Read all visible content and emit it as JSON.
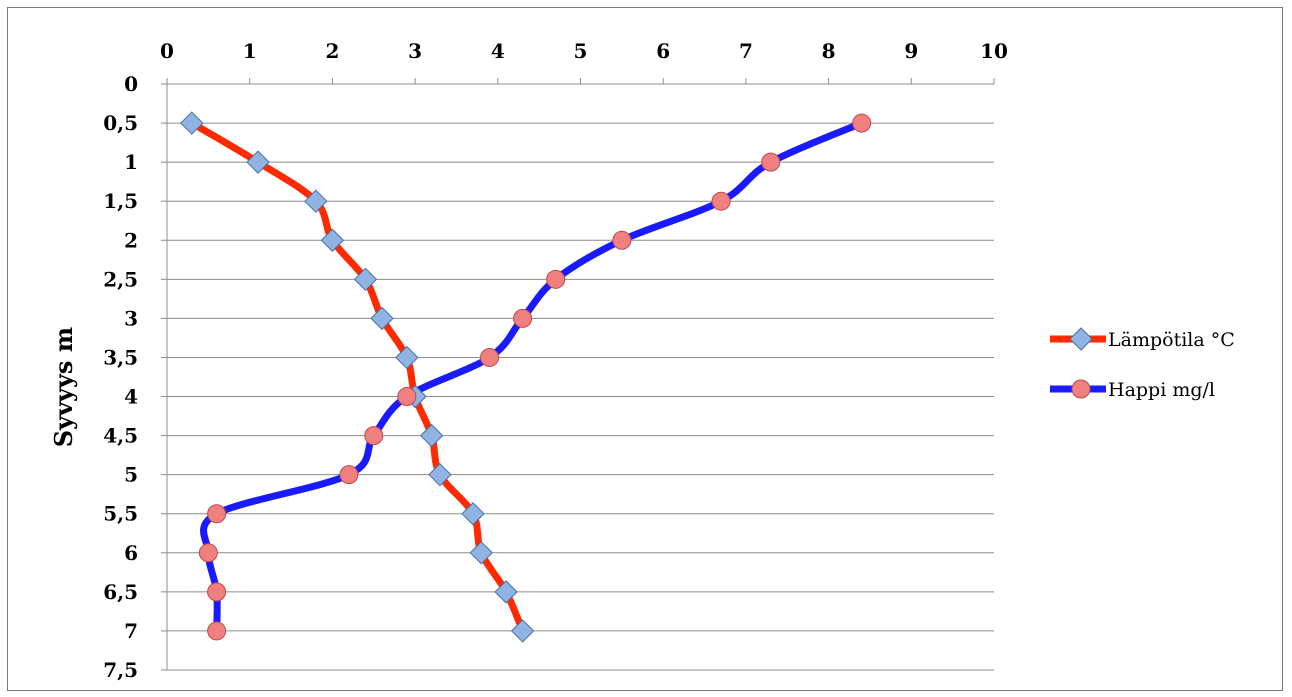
{
  "chart_data": {
    "type": "line",
    "title": "",
    "xlabel": "",
    "ylabel": "Syvyys m",
    "xlim": [
      0,
      10
    ],
    "ylim": [
      0,
      7.5
    ],
    "y_inverted": true,
    "x_axis_position": "top",
    "grid": true,
    "legend_position": "right",
    "x_ticks": [
      "0",
      "1",
      "2",
      "3",
      "4",
      "5",
      "6",
      "7",
      "8",
      "9",
      "10"
    ],
    "y_ticks": [
      "0",
      "0,5",
      "1",
      "1,5",
      "2",
      "2,5",
      "3",
      "3,5",
      "4",
      "4,5",
      "5",
      "5,5",
      "6",
      "6,5",
      "7",
      "7,5"
    ],
    "series": [
      {
        "name": "Lämpötila °C",
        "line_color": "#ff2a00",
        "marker": "diamond",
        "marker_color": "#8fb4e3",
        "depth": [
          0.5,
          1,
          1.5,
          2,
          2.5,
          3,
          3.5,
          4,
          4.5,
          5,
          5.5,
          6,
          6.5,
          7
        ],
        "values": [
          0.3,
          1.1,
          1.8,
          2.0,
          2.4,
          2.6,
          2.9,
          3.0,
          3.2,
          3.3,
          3.7,
          3.8,
          4.1,
          4.3
        ]
      },
      {
        "name": "Happi mg/l",
        "line_color": "#1a1aff",
        "marker": "circle",
        "marker_color": "#f08080",
        "depth": [
          0.5,
          1,
          1.5,
          2,
          2.5,
          3,
          3.5,
          4,
          4.5,
          5,
          5.5,
          6,
          6.5,
          7
        ],
        "values": [
          8.4,
          7.3,
          6.7,
          5.5,
          4.7,
          4.3,
          3.9,
          2.9,
          2.5,
          2.2,
          0.6,
          0.5,
          0.6,
          0.6
        ]
      }
    ]
  }
}
